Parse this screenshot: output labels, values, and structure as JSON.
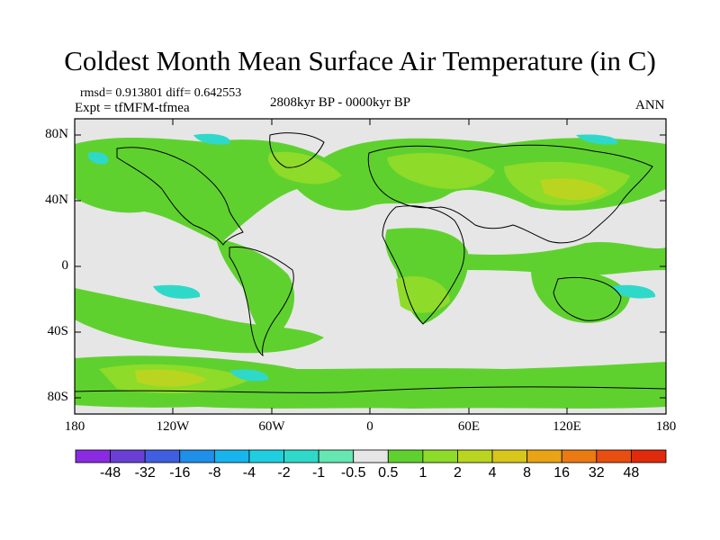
{
  "header": {
    "title": "Coldest Month Mean Surface Air Temperature (in C)",
    "stats": "rmsd= 0.913801 diff= 0.642553",
    "expt": "Expt = tfMFM-tfmea",
    "period": "2808kyr BP - 0000kyr BP",
    "season": "ANN"
  },
  "axes": {
    "y_ticks": [
      "80N",
      "40N",
      "0",
      "40S",
      "80S"
    ],
    "x_ticks": [
      "180",
      "120W",
      "60W",
      "0",
      "60E",
      "120E",
      "180"
    ]
  },
  "colorbar": {
    "labels": [
      "-48",
      "-32",
      "-16",
      "-8",
      "-4",
      "-2",
      "-1",
      "-0.5",
      "0.5",
      "1",
      "2",
      "4",
      "8",
      "16",
      "32",
      "48"
    ],
    "colors": [
      "#8a2be2",
      "#6a3fd6",
      "#3f5fe0",
      "#1f8fe8",
      "#18b4ee",
      "#1fcfe0",
      "#2fd9c9",
      "#66e6b0",
      "#e6e6e6",
      "#5fd12f",
      "#8edb29",
      "#b9d51f",
      "#d9c61b",
      "#e8a416",
      "#eb7a12",
      "#e84e10",
      "#e02a0c"
    ]
  },
  "map_colors": {
    "neutral": "#e6e6e6",
    "green": "#5fd12f",
    "lime": "#8edb29",
    "olive": "#b9d51f",
    "cyan": "#2fd9c9",
    "coast": "#000000"
  }
}
